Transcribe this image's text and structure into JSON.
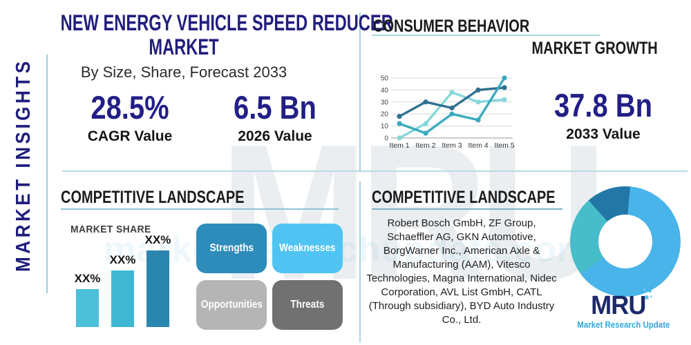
{
  "sidebar": {
    "label": "MARKET INSIGHTS"
  },
  "header": {
    "title_line1": "NEW ENERGY VEHICLE SPEED REDUCER",
    "title_line2": "MARKET",
    "subtitle": "By Size, Share, Forecast 2033"
  },
  "stats": {
    "cagr": {
      "value": "28.5%",
      "label": "CAGR Value"
    },
    "base": {
      "value": "6.5 Bn",
      "label": "2026 Value"
    },
    "forecast": {
      "value": "37.8 Bn",
      "label": "2033 Value"
    }
  },
  "sections": {
    "consumer_behavior": {
      "title": "CONSUMER BEHAVIOR"
    },
    "market_growth": {
      "title": "MARKET GROWTH"
    },
    "competitive_left": {
      "title": "COMPETITIVE LANDSCAPE"
    },
    "competitive_right": {
      "title": "COMPETITIVE LANDSCAPE",
      "companies": "Robert Bosch GmbH, ZF Group, Schaeffler AG, GKN Automotive, BorgWarner Inc., American Axle & Manufacturing (AAM), Vitesco Technologies, Magna International, Nidec Corporation, AVL List GmbH, CATL (Through subsidiary), BYD Auto Industry Co., Ltd."
    }
  },
  "swot": [
    {
      "label": "Strengths",
      "color": "#2d8cba"
    },
    {
      "label": "Weaknesses",
      "color": "#4fc4f2"
    },
    {
      "label": "Opportunities",
      "color": "#b5b5b5"
    },
    {
      "label": "Threats",
      "color": "#717171"
    }
  ],
  "chart_data": [
    {
      "id": "market-growth-line",
      "type": "line",
      "categories": [
        "Item 1",
        "Item 2",
        "Item 3",
        "Item 4",
        "Item 5"
      ],
      "series": [
        {
          "name": "light-aqua-series",
          "color": "#86d8da",
          "values": [
            0,
            12,
            38,
            30,
            32
          ]
        },
        {
          "name": "dark-blue-series",
          "color": "#2f7090",
          "values": [
            18,
            30,
            25,
            40,
            42
          ]
        },
        {
          "name": "teal-series",
          "color": "#3aaabe",
          "values": [
            12,
            4,
            20,
            15,
            50
          ]
        }
      ],
      "ylim": [
        0,
        50
      ],
      "yticks": [
        0,
        10,
        20,
        30,
        40,
        50
      ],
      "grid": true,
      "legend": false
    },
    {
      "id": "market-share-bar",
      "type": "bar",
      "title": "MARKET SHARE",
      "values": [
        35,
        52,
        70
      ],
      "value_labels": [
        "XX%",
        "XX%",
        "XX%"
      ],
      "colors": [
        "#4cc0d8",
        "#3fb7d2",
        "#2b86ae"
      ],
      "ylim": [
        0,
        100
      ],
      "xlabel": "",
      "ylabel": ""
    },
    {
      "id": "competitor-share-donut",
      "type": "pie",
      "donut": true,
      "start_angle_deg": 5,
      "slices": [
        {
          "name": "light-blue-slice",
          "value": 63.5,
          "color": "#49b4e9"
        },
        {
          "name": "teal-slice",
          "value": 23.5,
          "color": "#47bdca"
        },
        {
          "name": "dark-blue-slice",
          "value": 13,
          "color": "#2277a6"
        }
      ]
    }
  ],
  "branding": {
    "logo_text": "MRU",
    "tagline": "Market Research Update",
    "watermark": "MRU",
    "watermark_url": "marketresearchupdate.com"
  },
  "colors": {
    "navy_title": "#211e7d",
    "navy_value": "#211f86",
    "heading_dark": "#1b1b1b",
    "divider_blue": "#a8d4e0",
    "logo_navy": "#1c2a6b",
    "logo_teal": "#2fa9da"
  }
}
